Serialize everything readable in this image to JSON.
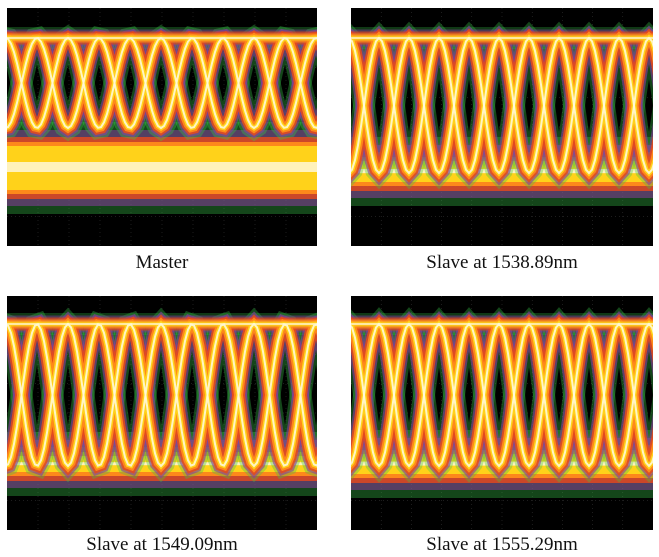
{
  "figure": {
    "panels": [
      {
        "caption": "Master"
      },
      {
        "caption": "Slave at 1538.89nm"
      },
      {
        "caption": "Slave at 1549.09nm"
      },
      {
        "caption": "Slave at 1555.29nm"
      }
    ],
    "palette": {
      "background": "#000000",
      "grid": "#3a3a3a",
      "white": "#fff8d8",
      "yellow": "#ffd21a",
      "orange": "#ff8c1a",
      "red": "#e84a1a",
      "purple": "#8a3aa0",
      "green": "#3ac84a"
    }
  }
}
